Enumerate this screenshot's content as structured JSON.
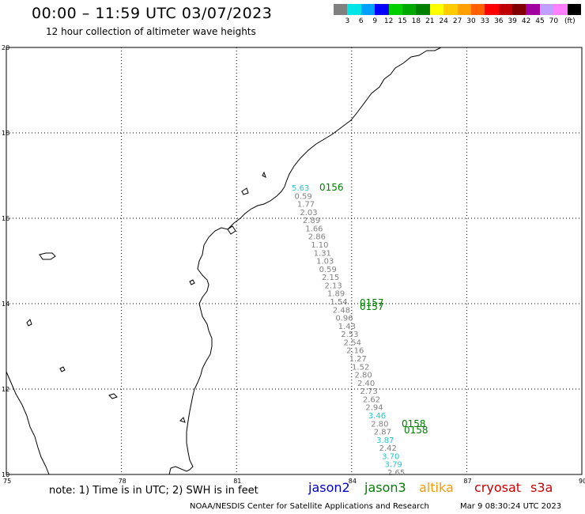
{
  "header": {
    "title": "00:00 – 11:59 UTC 03/07/2023",
    "subtitle": "12 hour collection of altimeter wave heights"
  },
  "colorbar": {
    "colors": [
      "#808080",
      "#00e5e5",
      "#00a0ff",
      "#0000ff",
      "#00d000",
      "#00a800",
      "#008000",
      "#ffff00",
      "#ffcc00",
      "#ffa000",
      "#ff6000",
      "#ff0000",
      "#c00000",
      "#800000",
      "#a000a0",
      "#c0a0ff",
      "#ff80ff",
      "#000000"
    ],
    "labels": [
      "3",
      "6",
      "9",
      "12",
      "15",
      "18",
      "21",
      "24",
      "27",
      "30",
      "33",
      "36",
      "39",
      "42",
      "45",
      "70"
    ],
    "unit": "(ft)"
  },
  "map": {
    "lat_labels": [
      "20",
      "18",
      "16",
      "14",
      "12",
      "10"
    ],
    "lon_labels": [
      "75",
      "78",
      "81",
      "84",
      "87",
      "90"
    ],
    "pass_labels": [
      "0156",
      "0157",
      "0157",
      "0158",
      "0158"
    ],
    "swh_values": [
      {
        "v": "5.63",
        "c": "#20c8d0"
      },
      {
        "v": "0.59",
        "c": "#808080"
      },
      {
        "v": "1.77",
        "c": "#808080"
      },
      {
        "v": "2.03",
        "c": "#808080"
      },
      {
        "v": "2.89",
        "c": "#808080"
      },
      {
        "v": "1.66",
        "c": "#808080"
      },
      {
        "v": "2.86",
        "c": "#808080"
      },
      {
        "v": "1.10",
        "c": "#808080"
      },
      {
        "v": "1.31",
        "c": "#808080"
      },
      {
        "v": "1.03",
        "c": "#808080"
      },
      {
        "v": "0.59",
        "c": "#808080"
      },
      {
        "v": "2.15",
        "c": "#808080"
      },
      {
        "v": "2.13",
        "c": "#808080"
      },
      {
        "v": "1.89",
        "c": "#808080"
      },
      {
        "v": "1.54",
        "c": "#808080"
      },
      {
        "v": "2.48",
        "c": "#808080"
      },
      {
        "v": "0.96",
        "c": "#808080"
      },
      {
        "v": "1.43",
        "c": "#808080"
      },
      {
        "v": "2.53",
        "c": "#808080"
      },
      {
        "v": "2.54",
        "c": "#808080"
      },
      {
        "v": "2.16",
        "c": "#808080"
      },
      {
        "v": "1.27",
        "c": "#808080"
      },
      {
        "v": "1.52",
        "c": "#808080"
      },
      {
        "v": "2.80",
        "c": "#808080"
      },
      {
        "v": "2.40",
        "c": "#808080"
      },
      {
        "v": "2.73",
        "c": "#808080"
      },
      {
        "v": "2.62",
        "c": "#808080"
      },
      {
        "v": "2.94",
        "c": "#808080"
      },
      {
        "v": "3.46",
        "c": "#20c8d0"
      },
      {
        "v": "2.80",
        "c": "#808080"
      },
      {
        "v": "2.87",
        "c": "#808080"
      },
      {
        "v": "3.87",
        "c": "#20c8d0"
      },
      {
        "v": "2.42",
        "c": "#808080"
      },
      {
        "v": "3.70",
        "c": "#20c8d0"
      },
      {
        "v": "3.79",
        "c": "#20c8d0"
      },
      {
        "v": "2.65",
        "c": "#808080"
      }
    ]
  },
  "footer": {
    "note": "note:  1) Time is in UTC;  2) SWH is in feet",
    "satellites": [
      {
        "name": "jason2",
        "color": "#0000cc"
      },
      {
        "name": "jason3",
        "color": "#008000"
      },
      {
        "name": "altika",
        "color": "#ff9900"
      },
      {
        "name": "cryosat",
        "color": "#cc0000"
      },
      {
        "name": "s3a",
        "color": "#cc0000"
      }
    ],
    "credit": "NOAA/NESDIS Center for Satellite Applications and Research",
    "generated": "Mar  9 08:30:24 UTC 2023"
  }
}
